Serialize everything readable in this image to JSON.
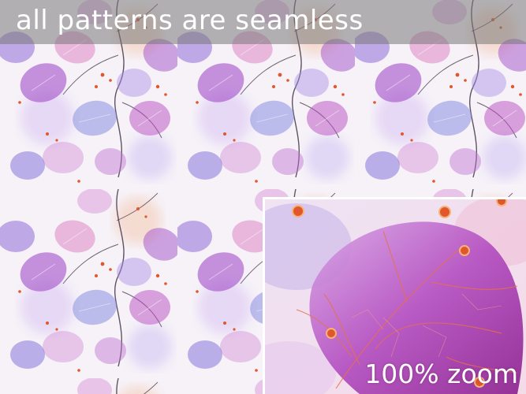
{
  "banner": {
    "text": "all patterns are seamless"
  },
  "zoom": {
    "label": "100% zoom"
  },
  "colors": {
    "background": "#f6f2f8",
    "purple": "#9a3fc4",
    "violet": "#7b4fd0",
    "periwinkle": "#8a8fe0",
    "pink": "#d86fb8",
    "peach": "#f0a07a",
    "berry": "#e0572c",
    "stem": "#3b2a40"
  },
  "icons": [
    "eucalyptus-leaf",
    "berry-dot",
    "stem-line"
  ]
}
